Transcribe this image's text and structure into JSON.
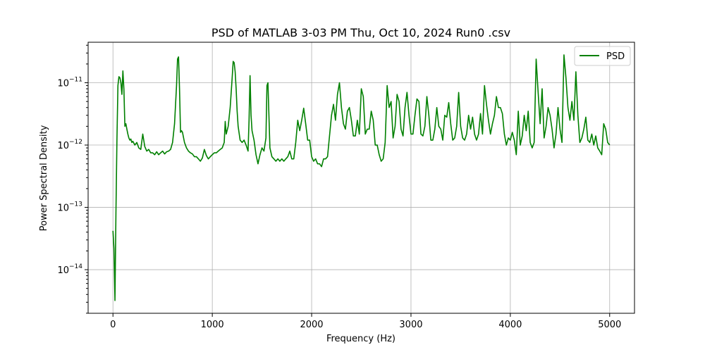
{
  "chart_data": {
    "type": "line",
    "title": "PSD of MATLAB 3-03 PM Thu, Oct 10, 2024 Run0 .csv",
    "xlabel": "Frequency (Hz)",
    "ylabel": "Power Spectral Density",
    "xlim": [
      -250,
      5250
    ],
    "ylim_log10": [
      -14.7,
      -10.35
    ],
    "y_scale": "log",
    "grid": true,
    "legend_position": "top-right",
    "x_ticks": [
      {
        "value": 0,
        "label": "0"
      },
      {
        "value": 1000,
        "label": "1000"
      },
      {
        "value": 2000,
        "label": "2000"
      },
      {
        "value": 3000,
        "label": "3000"
      },
      {
        "value": 4000,
        "label": "4000"
      },
      {
        "value": 5000,
        "label": "5000"
      }
    ],
    "y_ticks": [
      {
        "exp": -14,
        "base": "10",
        "power": "−14"
      },
      {
        "exp": -13,
        "base": "10",
        "power": "−13"
      },
      {
        "exp": -12,
        "base": "10",
        "power": "−12"
      },
      {
        "exp": -11,
        "base": "10",
        "power": "−11"
      }
    ],
    "series": [
      {
        "name": "PSD",
        "color": "#008000",
        "x": [
          0,
          10,
          20,
          30,
          40,
          50,
          60,
          70,
          80,
          90,
          100,
          110,
          120,
          130,
          140,
          150,
          160,
          170,
          180,
          190,
          200,
          220,
          240,
          260,
          280,
          300,
          320,
          340,
          360,
          380,
          400,
          420,
          440,
          460,
          480,
          500,
          520,
          540,
          560,
          580,
          600,
          620,
          640,
          650,
          660,
          670,
          680,
          690,
          700,
          720,
          740,
          760,
          780,
          800,
          820,
          840,
          860,
          880,
          900,
          920,
          940,
          960,
          980,
          1000,
          1020,
          1040,
          1060,
          1080,
          1100,
          1120,
          1130,
          1140,
          1160,
          1180,
          1200,
          1210,
          1220,
          1230,
          1240,
          1250,
          1260,
          1280,
          1300,
          1320,
          1340,
          1360,
          1370,
          1380,
          1390,
          1400,
          1420,
          1440,
          1460,
          1480,
          1500,
          1520,
          1540,
          1550,
          1560,
          1570,
          1580,
          1600,
          1620,
          1640,
          1660,
          1680,
          1700,
          1720,
          1740,
          1760,
          1780,
          1800,
          1820,
          1840,
          1860,
          1880,
          1900,
          1920,
          1940,
          1960,
          1980,
          2000,
          2020,
          2040,
          2060,
          2080,
          2100,
          2120,
          2140,
          2160,
          2180,
          2200,
          2220,
          2240,
          2260,
          2280,
          2300,
          2320,
          2340,
          2360,
          2380,
          2400,
          2420,
          2440,
          2460,
          2480,
          2500,
          2520,
          2540,
          2560,
          2580,
          2600,
          2620,
          2640,
          2660,
          2680,
          2700,
          2720,
          2740,
          2760,
          2780,
          2800,
          2820,
          2840,
          2860,
          2880,
          2900,
          2920,
          2940,
          2960,
          2980,
          3000,
          3020,
          3040,
          3060,
          3080,
          3100,
          3120,
          3140,
          3160,
          3180,
          3200,
          3220,
          3240,
          3260,
          3280,
          3300,
          3320,
          3340,
          3360,
          3380,
          3400,
          3420,
          3440,
          3460,
          3480,
          3500,
          3520,
          3540,
          3560,
          3580,
          3600,
          3620,
          3640,
          3660,
          3680,
          3700,
          3720,
          3740,
          3760,
          3780,
          3800,
          3820,
          3840,
          3860,
          3880,
          3900,
          3920,
          3940,
          3960,
          3980,
          4000,
          4020,
          4040,
          4060,
          4080,
          4100,
          4120,
          4140,
          4160,
          4180,
          4200,
          4220,
          4240,
          4260,
          4280,
          4300,
          4320,
          4340,
          4360,
          4380,
          4400,
          4420,
          4440,
          4460,
          4480,
          4500,
          4520,
          4540,
          4560,
          4580,
          4600,
          4620,
          4640,
          4660,
          4680,
          4700,
          4720,
          4740,
          4760,
          4780,
          4800,
          4820,
          4840,
          4860,
          4880,
          4900,
          4920,
          4940,
          4960,
          4980,
          5000
        ],
        "y": [
          4.2e-14,
          2.2e-14,
          3.2e-15,
          8e-14,
          1.2e-12,
          9e-12,
          1.25e-11,
          1.2e-11,
          1e-11,
          6.5e-12,
          1.55e-11,
          8e-12,
          2e-12,
          2.2e-12,
          1.8e-12,
          1.5e-12,
          1.3e-12,
          1.2e-12,
          1.25e-12,
          1.1e-12,
          1.15e-12,
          1e-12,
          1.1e-12,
          9e-13,
          8.5e-13,
          1.5e-12,
          9.5e-13,
          8e-13,
          8.5e-13,
          7.5e-13,
          7.5e-13,
          7e-13,
          7.8e-13,
          7e-13,
          7.5e-13,
          8e-13,
          7.2e-13,
          7.8e-13,
          8e-13,
          8.5e-13,
          1.1e-12,
          2.2e-12,
          9e-12,
          2.4e-11,
          2.6e-11,
          8e-12,
          1.6e-12,
          1.7e-12,
          1.6e-12,
          1.1e-12,
          9e-13,
          8e-13,
          7.5e-13,
          7.2e-13,
          6.5e-13,
          6.5e-13,
          6e-13,
          5.5e-13,
          6.2e-13,
          8.5e-13,
          6.8e-13,
          6e-13,
          6.5e-13,
          7e-13,
          7.5e-13,
          7.5e-13,
          8e-13,
          8.5e-13,
          9e-13,
          1.1e-12,
          2.4e-12,
          1.5e-12,
          2e-12,
          4e-12,
          1.2e-11,
          2.2e-11,
          2.1e-11,
          1.5e-11,
          8e-12,
          3.5e-12,
          2e-12,
          1.2e-12,
          1.1e-12,
          1.2e-12,
          1e-12,
          8e-13,
          2.5e-12,
          1.3e-11,
          3e-12,
          1.7e-12,
          1.2e-12,
          7e-13,
          5e-13,
          7e-13,
          9e-13,
          8e-13,
          1.3e-12,
          9e-12,
          1e-11,
          3e-12,
          9e-13,
          6.5e-13,
          6e-13,
          5.5e-13,
          6e-13,
          5.5e-13,
          6e-13,
          5.5e-13,
          6e-13,
          6.5e-13,
          8e-13,
          6e-13,
          6e-13,
          1.1e-12,
          2.5e-12,
          1.7e-12,
          2.5e-12,
          3.9e-12,
          2.2e-12,
          1.2e-12,
          1.2e-12,
          6.5e-13,
          5.5e-13,
          6e-13,
          5e-13,
          5e-13,
          4.5e-13,
          6e-13,
          6e-13,
          6.5e-13,
          1.4e-12,
          3e-12,
          4.5e-12,
          2.5e-12,
          6.5e-12,
          1e-11,
          4e-12,
          2.2e-12,
          1.8e-12,
          3.5e-12,
          4e-12,
          2.5e-12,
          1.4e-12,
          1.4e-12,
          2.5e-12,
          1.5e-12,
          8e-12,
          6e-12,
          1.5e-12,
          1.8e-12,
          1.8e-12,
          3.5e-12,
          2.5e-12,
          1e-12,
          1e-12,
          7e-13,
          5.5e-13,
          6e-13,
          1.1e-12,
          9e-12,
          4e-12,
          5e-12,
          1.3e-12,
          2e-12,
          6.5e-12,
          5e-12,
          1.8e-12,
          1.4e-12,
          4e-12,
          7e-12,
          3e-12,
          1.5e-12,
          1.5e-12,
          3e-12,
          5.5e-12,
          5e-12,
          1.5e-12,
          1.4e-12,
          2e-12,
          6e-12,
          3e-12,
          1.2e-12,
          1.2e-12,
          1.8e-12,
          4e-12,
          2e-12,
          1.8e-12,
          1.2e-12,
          3e-12,
          2.8e-12,
          4.8e-12,
          2.2e-12,
          1.2e-12,
          1.3e-12,
          2e-12,
          7e-12,
          2e-12,
          1.3e-12,
          1.2e-12,
          1.5e-12,
          3e-12,
          1.8e-12,
          2.8e-12,
          1.5e-12,
          1.2e-12,
          1.5e-12,
          3.2e-12,
          1.5e-12,
          9e-12,
          4.5e-12,
          2.5e-12,
          1.5e-12,
          2.2e-12,
          3e-12,
          6e-12,
          4e-12,
          4e-12,
          3.2e-12,
          1.5e-12,
          1e-12,
          1.3e-12,
          1.2e-12,
          1.6e-12,
          1.2e-12,
          7e-13,
          3.5e-12,
          1e-12,
          1.4e-12,
          3e-12,
          1.7e-12,
          3.5e-12,
          1.1e-12,
          9e-13,
          1.1e-12,
          2.4e-11,
          7e-12,
          2.2e-12,
          8e-12,
          1.3e-12,
          2e-12,
          4e-12,
          3e-12,
          1.8e-12,
          9e-13,
          1.5e-12,
          4e-12,
          1.8e-12,
          1.1e-12,
          2.8e-11,
          1.2e-11,
          4e-12,
          2.5e-12,
          5e-12,
          2.5e-12,
          1.5e-11,
          3e-12,
          1.1e-12,
          1.3e-12,
          1.8e-12,
          2.8e-12,
          1.2e-12,
          1.1e-12,
          1.5e-12,
          1e-12,
          1.4e-12,
          9e-13,
          8e-13,
          7e-13,
          2.2e-12,
          1.8e-12,
          1.1e-12,
          1e-12
        ]
      }
    ]
  }
}
